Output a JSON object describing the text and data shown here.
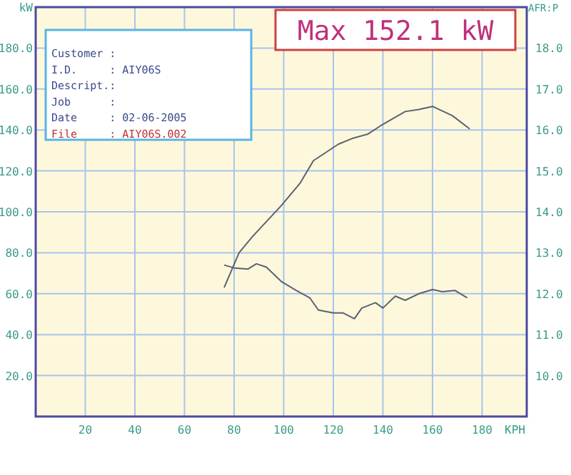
{
  "chart_data": {
    "type": "line",
    "title": "Max 152.1 kW",
    "xlabel": "KPH",
    "ylabel": "kW",
    "y2label": "AFR:P",
    "annotations": [
      "Customer :",
      "I.D.     : AIY06S",
      "Descript.:",
      "Job      :",
      "Date     : 02-06-2005",
      "File     : AIY06S.002"
    ],
    "xlim": [
      0,
      198
    ],
    "xticks": [
      20,
      40,
      60,
      80,
      100,
      120,
      140,
      160,
      180
    ],
    "ylim": [
      0,
      200
    ],
    "yticks": [
      {
        "value": 20,
        "label": "20.0"
      },
      {
        "value": 40,
        "label": "40.0"
      },
      {
        "value": 60,
        "label": "60.0"
      },
      {
        "value": 80,
        "label": "80.0"
      },
      {
        "value": 100,
        "label": "100.0"
      },
      {
        "value": 120,
        "label": "120.0"
      },
      {
        "value": 140,
        "label": "140.0"
      },
      {
        "value": 160,
        "label": "160.0"
      },
      {
        "value": 180,
        "label": "180.0"
      }
    ],
    "y2lim": [
      9,
      19
    ],
    "y2ticks": [
      {
        "value": 10,
        "label": "10.0"
      },
      {
        "value": 11,
        "label": "11.0"
      },
      {
        "value": 12,
        "label": "12.0"
      },
      {
        "value": 13,
        "label": "13.0"
      },
      {
        "value": 14,
        "label": "14.0"
      },
      {
        "value": 15,
        "label": "15.0"
      },
      {
        "value": 16,
        "label": "16.0"
      },
      {
        "value": 17,
        "label": "17.0"
      },
      {
        "value": 18,
        "label": "18.0"
      }
    ],
    "grid": true,
    "line_style": "solid",
    "marker": "none",
    "series": [
      {
        "color": "#5a6272",
        "x": [
          76,
          82,
          87.5,
          99,
          106.6,
          112,
          122,
          128,
          134,
          139,
          149,
          154.5,
          160,
          168,
          175
        ],
        "values": [
          63,
          80,
          88,
          103,
          114,
          125,
          133,
          136,
          138,
          142,
          149,
          150,
          151.5,
          147,
          140.5
        ]
      },
      {
        "color": "#5a6272",
        "axis": "y2",
        "x": [
          76,
          80,
          85.5,
          89,
          93,
          99,
          105,
          110.5,
          114,
          120,
          124,
          128.5,
          131.5,
          137,
          140,
          145,
          149,
          154.5,
          160,
          164,
          169,
          174
        ],
        "values": [
          12.7,
          12.63,
          12.6,
          12.73,
          12.65,
          12.3,
          12.08,
          11.9,
          11.6,
          11.53,
          11.53,
          11.39,
          11.65,
          11.78,
          11.65,
          11.94,
          11.84,
          12.0,
          12.1,
          12.05,
          12.08,
          11.9
        ]
      }
    ]
  }
}
